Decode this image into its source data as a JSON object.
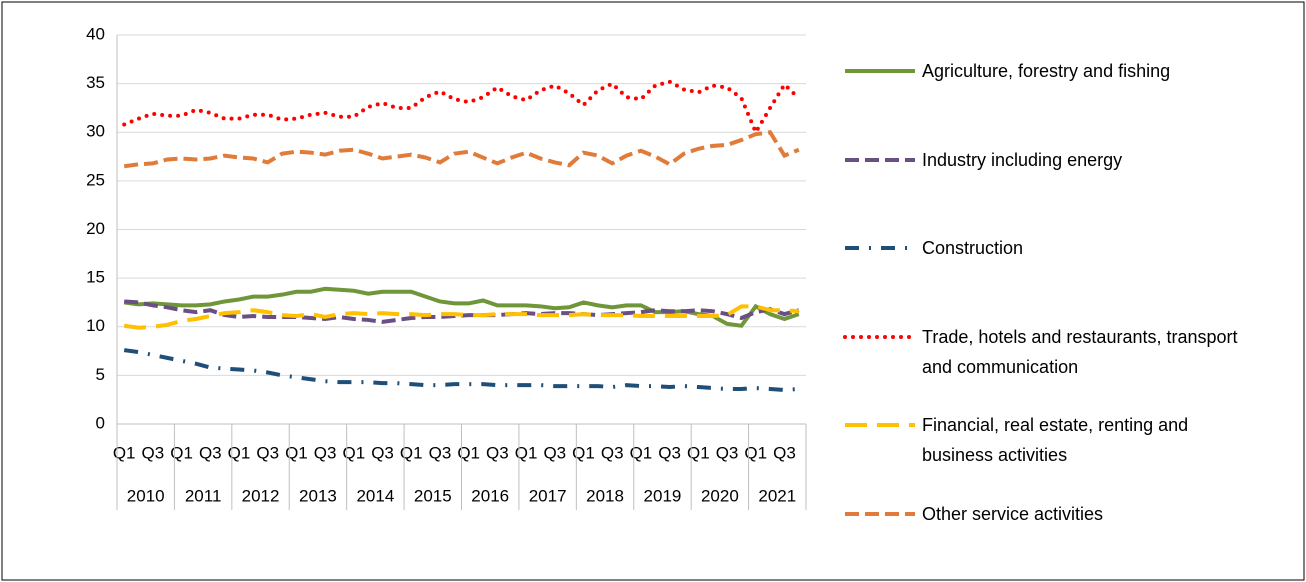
{
  "chart_data": {
    "type": "line",
    "categories": [
      "Q1",
      null,
      "Q3",
      null,
      "Q1",
      null,
      "Q3",
      null,
      "Q1",
      null,
      "Q3",
      null,
      "Q1",
      null,
      "Q3",
      null,
      "Q1",
      null,
      "Q3",
      null,
      "Q1",
      null,
      "Q3",
      null,
      "Q1",
      null,
      "Q3",
      null,
      "Q1",
      null,
      "Q3",
      null,
      "Q1",
      null,
      "Q3",
      null,
      "Q1",
      null,
      "Q3",
      null,
      "Q1",
      null,
      "Q3",
      null,
      "Q1",
      null,
      "Q3",
      null
    ],
    "years": [
      "2010",
      "2011",
      "2012",
      "2013",
      "2014",
      "2015",
      "2016",
      "2017",
      "2018",
      "2019",
      "2020",
      "2021"
    ],
    "ylim": [
      0,
      40
    ],
    "yticks": [
      0,
      5,
      10,
      15,
      20,
      25,
      30,
      35,
      40
    ],
    "grid": true,
    "series": [
      {
        "name": "Agriculture, forestry and fishing",
        "color": "#70963a",
        "style": "solid",
        "values": [
          12.5,
          12.3,
          12.4,
          12.3,
          12.2,
          12.2,
          12.3,
          12.6,
          12.8,
          13.1,
          13.1,
          13.3,
          13.6,
          13.6,
          13.9,
          13.8,
          13.7,
          13.4,
          13.6,
          13.6,
          13.6,
          13.1,
          12.6,
          12.4,
          12.4,
          12.7,
          12.2,
          12.2,
          12.2,
          12.1,
          11.9,
          12.0,
          12.5,
          12.2,
          12.0,
          12.2,
          12.2,
          11.5,
          11.5,
          11.6,
          11.3,
          11.1,
          10.3,
          10.1,
          12.1,
          11.3,
          10.8,
          11.3
        ]
      },
      {
        "name": "Industry including energy",
        "color": "#6a4f85",
        "style": "dash",
        "values": [
          12.6,
          12.5,
          12.2,
          12.0,
          11.7,
          11.5,
          11.7,
          11.2,
          11.0,
          11.1,
          11.0,
          11.0,
          11.0,
          10.9,
          10.8,
          11.0,
          10.8,
          10.7,
          10.5,
          10.7,
          10.9,
          11.0,
          11.0,
          11.1,
          11.2,
          11.2,
          11.2,
          11.3,
          11.4,
          11.3,
          11.4,
          11.4,
          11.3,
          11.2,
          11.3,
          11.4,
          11.5,
          11.7,
          11.6,
          11.6,
          11.7,
          11.6,
          11.3,
          10.9,
          11.5,
          11.8,
          11.3,
          11.7
        ]
      },
      {
        "name": "Construction",
        "color": "#1f4e79",
        "style": "dashdot",
        "values": [
          7.6,
          7.4,
          7.1,
          6.8,
          6.5,
          6.2,
          5.8,
          5.7,
          5.6,
          5.5,
          5.3,
          5.0,
          4.8,
          4.6,
          4.4,
          4.3,
          4.3,
          4.3,
          4.2,
          4.2,
          4.1,
          4.0,
          4.0,
          4.1,
          4.1,
          4.1,
          4.0,
          4.0,
          4.0,
          4.0,
          3.9,
          3.9,
          3.9,
          3.9,
          3.8,
          4.0,
          3.9,
          3.9,
          3.8,
          3.9,
          3.8,
          3.7,
          3.6,
          3.6,
          3.7,
          3.6,
          3.5,
          3.6
        ]
      },
      {
        "name": "Trade, hotels and restaurants, transport and communication",
        "color": "#ff0000",
        "style": "dot",
        "values": [
          30.8,
          31.4,
          31.9,
          31.7,
          31.7,
          32.3,
          32.0,
          31.4,
          31.4,
          31.8,
          31.8,
          31.3,
          31.4,
          31.8,
          32.0,
          31.6,
          31.6,
          32.6,
          33.0,
          32.5,
          32.5,
          33.6,
          34.2,
          33.4,
          33.1,
          33.6,
          34.6,
          33.7,
          33.3,
          34.3,
          34.8,
          34.0,
          32.8,
          34.3,
          35.0,
          33.6,
          33.4,
          34.8,
          35.2,
          34.4,
          34.1,
          34.8,
          34.6,
          33.5,
          30.0,
          32.5,
          34.9,
          33.5
        ]
      },
      {
        "name": "Financial, real estate, renting and business activities",
        "color": "#ffc000",
        "style": "longdash",
        "values": [
          10.1,
          9.9,
          10.0,
          10.2,
          10.6,
          10.8,
          11.1,
          11.4,
          11.5,
          11.7,
          11.5,
          11.2,
          11.1,
          11.3,
          11.0,
          11.3,
          11.4,
          11.3,
          11.4,
          11.3,
          11.3,
          11.2,
          11.3,
          11.3,
          11.2,
          11.2,
          11.3,
          11.3,
          11.3,
          11.2,
          11.2,
          11.2,
          11.3,
          11.2,
          11.2,
          11.2,
          11.1,
          11.1,
          11.1,
          11.1,
          11.1,
          11.1,
          11.2,
          12.1,
          12.1,
          11.7,
          11.7,
          11.6
        ]
      },
      {
        "name": "Other service activities",
        "color": "#e07b39",
        "style": "dash",
        "values": [
          26.5,
          26.7,
          26.8,
          27.2,
          27.3,
          27.2,
          27.3,
          27.6,
          27.4,
          27.3,
          26.9,
          27.8,
          28.0,
          27.9,
          27.7,
          28.1,
          28.2,
          27.8,
          27.3,
          27.5,
          27.7,
          27.4,
          26.9,
          27.8,
          28.0,
          27.4,
          26.8,
          27.4,
          27.9,
          27.3,
          26.9,
          26.6,
          27.9,
          27.6,
          26.8,
          27.6,
          28.1,
          27.5,
          26.7,
          27.8,
          28.3,
          28.6,
          28.7,
          29.2,
          29.8,
          30.0,
          27.6,
          28.2
        ]
      }
    ]
  }
}
